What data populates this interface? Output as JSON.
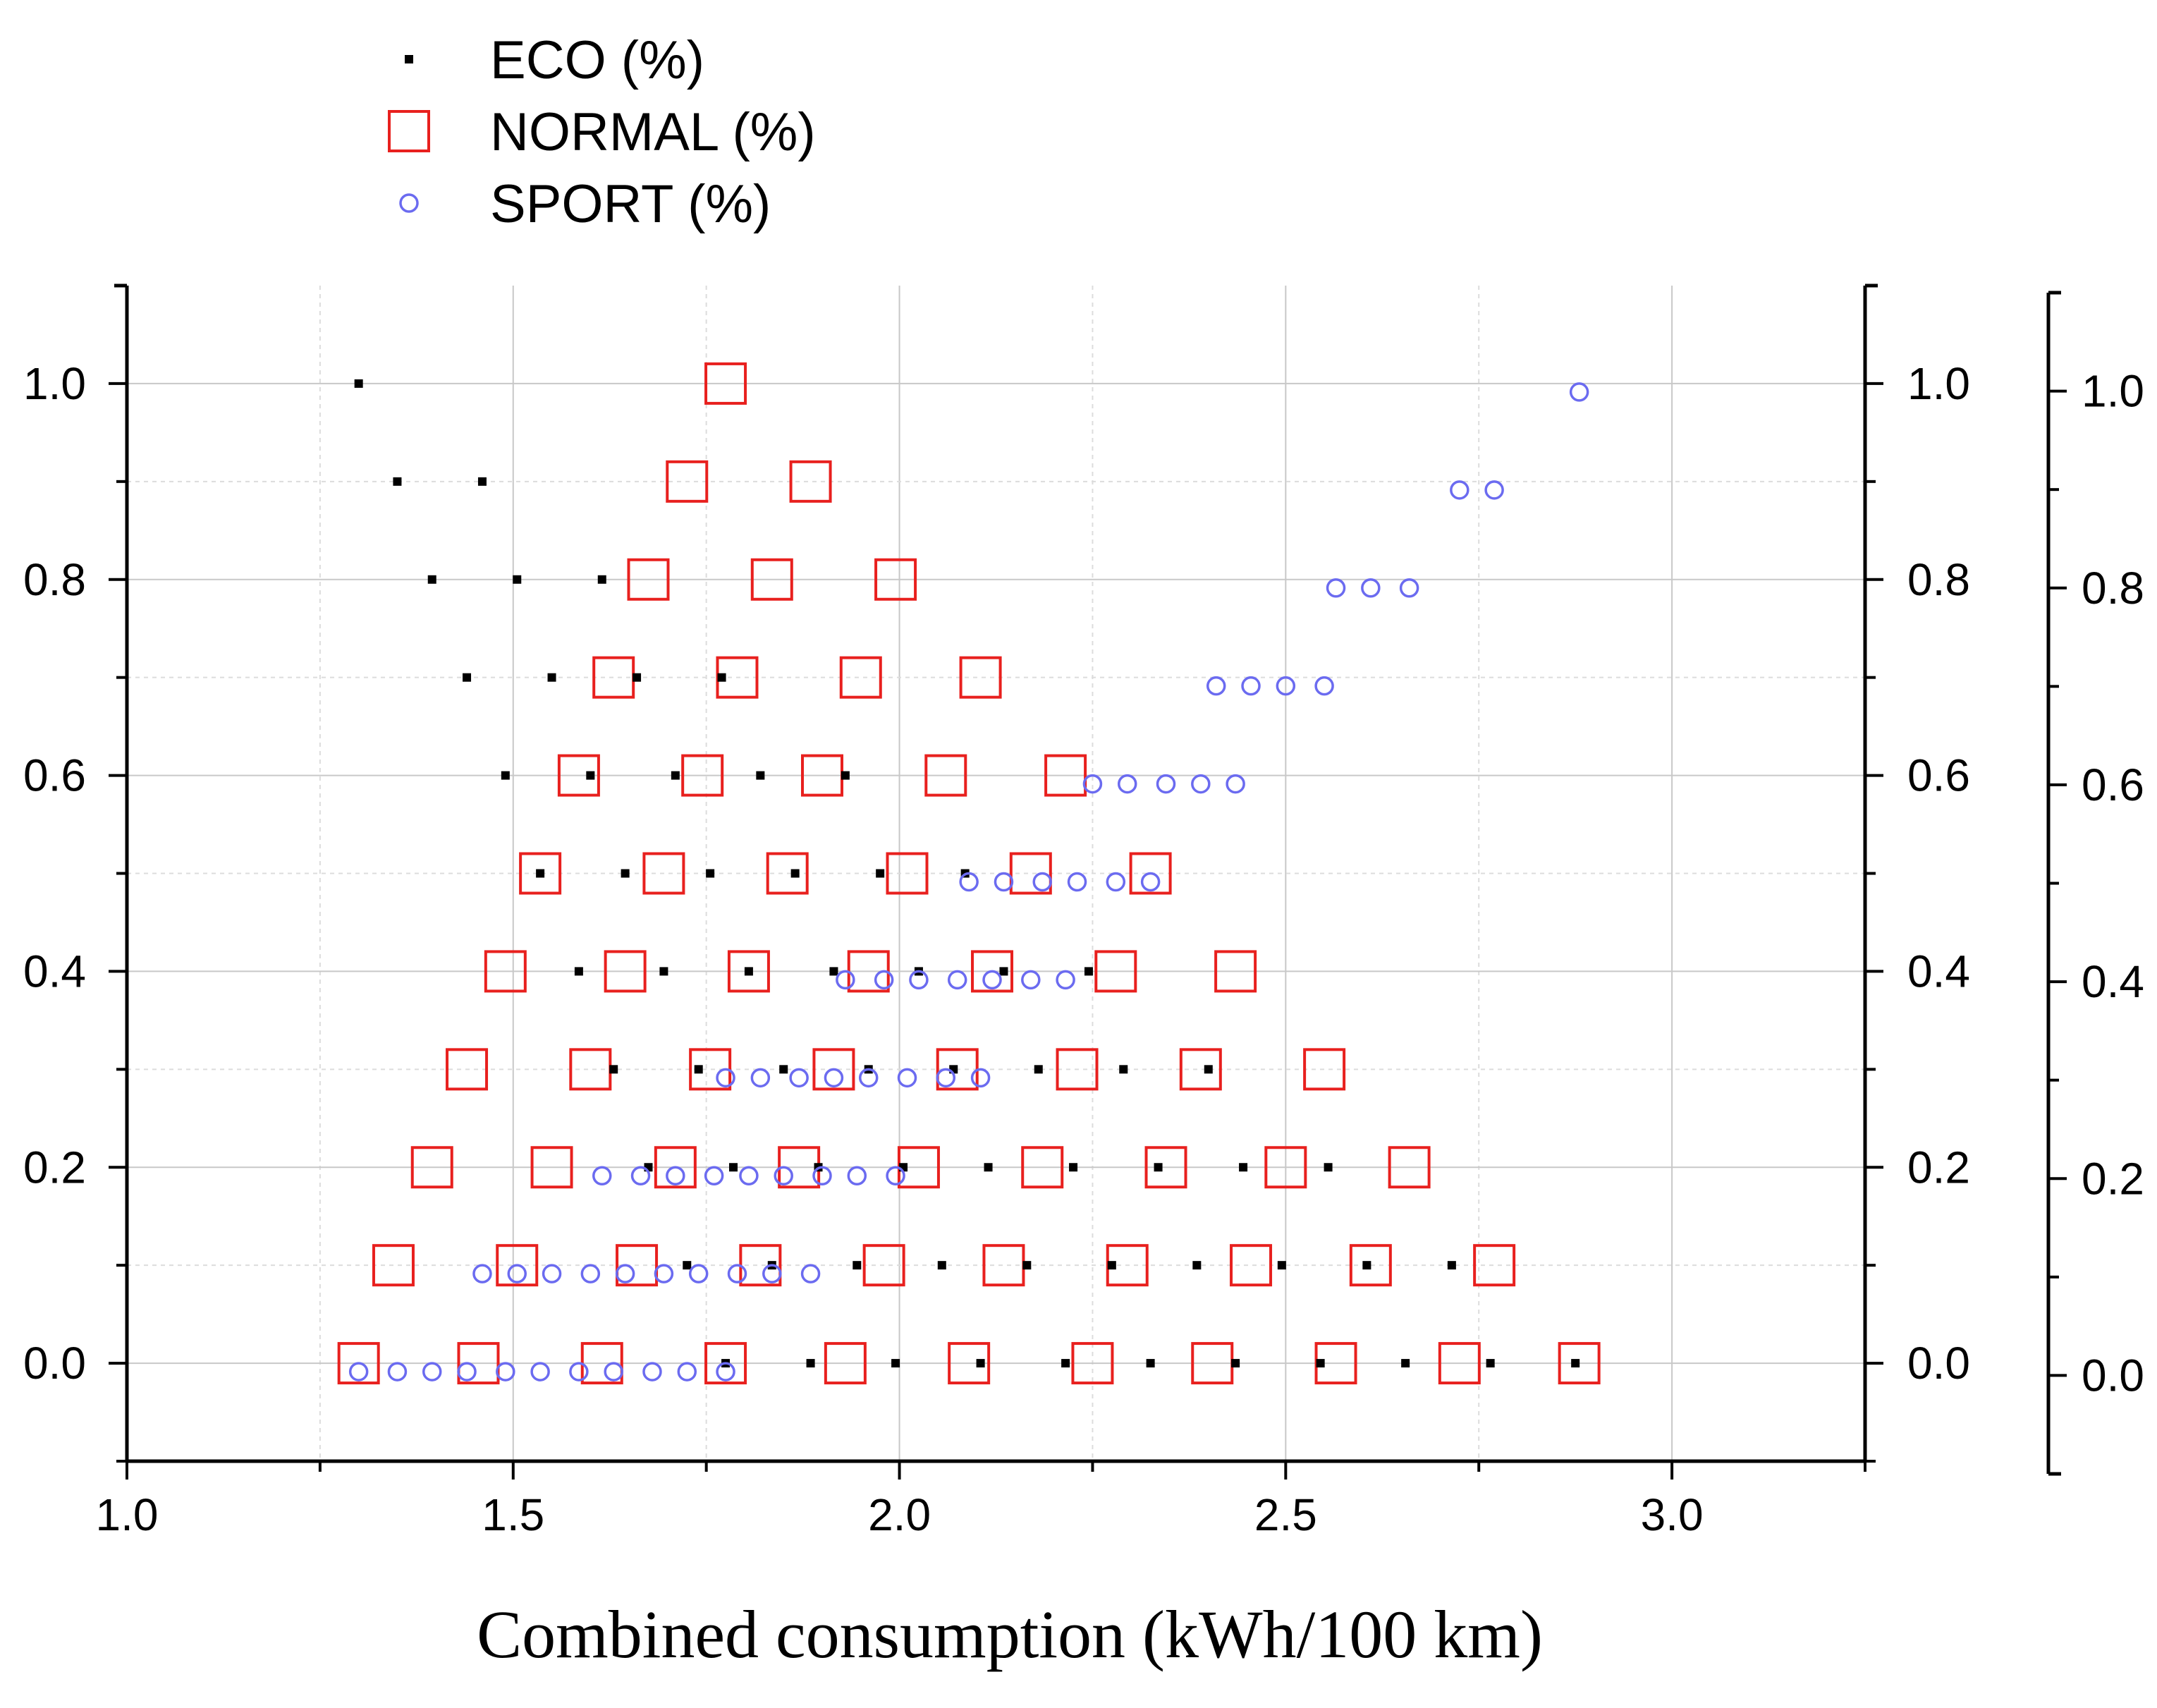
{
  "chart_data": {
    "type": "scatter",
    "title": "",
    "xlabel": "Combined consumption (kWh/100 km)",
    "ylabel": "",
    "xlim": [
      1.0,
      3.25
    ],
    "ylim": [
      -0.1,
      1.1
    ],
    "x_ticks": [
      "1.0",
      "1.5",
      "2.0",
      "2.5",
      "3.0"
    ],
    "y_ticks": [
      "0.0",
      "0.2",
      "0.4",
      "0.6",
      "0.8",
      "1.0"
    ],
    "y_ticks_right": [
      "0.0",
      "0.2",
      "0.4",
      "0.6",
      "0.8",
      "1.0"
    ],
    "y_ticks_right2": [
      "0.0",
      "0.2",
      "0.4",
      "0.6",
      "0.8",
      "1.0"
    ],
    "grid": true,
    "legend_position": "top-left, above plot",
    "series": [
      {
        "name": "ECO (%)",
        "marker": "small-square",
        "color": "#000000",
        "points": [
          [
            1.3,
            1.0
          ],
          [
            1.35,
            0.9
          ],
          [
            1.46,
            0.9
          ],
          [
            1.395,
            0.8
          ],
          [
            1.505,
            0.8
          ],
          [
            1.615,
            0.8
          ],
          [
            1.44,
            0.7
          ],
          [
            1.55,
            0.7
          ],
          [
            1.66,
            0.7
          ],
          [
            1.77,
            0.7
          ],
          [
            1.49,
            0.6
          ],
          [
            1.6,
            0.6
          ],
          [
            1.71,
            0.6
          ],
          [
            1.82,
            0.6
          ],
          [
            1.93,
            0.6
          ],
          [
            1.535,
            0.5
          ],
          [
            1.645,
            0.5
          ],
          [
            1.755,
            0.5
          ],
          [
            1.865,
            0.5
          ],
          [
            1.975,
            0.5
          ],
          [
            2.085,
            0.5
          ],
          [
            1.585,
            0.4
          ],
          [
            1.695,
            0.4
          ],
          [
            1.805,
            0.4
          ],
          [
            1.915,
            0.4
          ],
          [
            2.025,
            0.4
          ],
          [
            2.135,
            0.4
          ],
          [
            2.245,
            0.4
          ],
          [
            1.63,
            0.3
          ],
          [
            1.74,
            0.3
          ],
          [
            1.85,
            0.3
          ],
          [
            1.96,
            0.3
          ],
          [
            2.07,
            0.3
          ],
          [
            2.18,
            0.3
          ],
          [
            2.29,
            0.3
          ],
          [
            2.4,
            0.3
          ],
          [
            1.675,
            0.2
          ],
          [
            1.785,
            0.2
          ],
          [
            1.895,
            0.2
          ],
          [
            2.005,
            0.2
          ],
          [
            2.115,
            0.2
          ],
          [
            2.225,
            0.2
          ],
          [
            2.335,
            0.2
          ],
          [
            2.445,
            0.2
          ],
          [
            2.555,
            0.2
          ],
          [
            1.725,
            0.1
          ],
          [
            1.835,
            0.1
          ],
          [
            1.945,
            0.1
          ],
          [
            2.055,
            0.1
          ],
          [
            2.165,
            0.1
          ],
          [
            2.275,
            0.1
          ],
          [
            2.385,
            0.1
          ],
          [
            2.495,
            0.1
          ],
          [
            2.605,
            0.1
          ],
          [
            2.715,
            0.1
          ],
          [
            1.775,
            0.0
          ],
          [
            1.885,
            0.0
          ],
          [
            1.995,
            0.0
          ],
          [
            2.105,
            0.0
          ],
          [
            2.215,
            0.0
          ],
          [
            2.325,
            0.0
          ],
          [
            2.435,
            0.0
          ],
          [
            2.545,
            0.0
          ],
          [
            2.655,
            0.0
          ],
          [
            2.765,
            0.0
          ],
          [
            2.875,
            0.0
          ]
        ]
      },
      {
        "name": "NORMAL (%)",
        "marker": "open-square",
        "color": "#e8201e",
        "points": [
          [
            1.775,
            1.0
          ],
          [
            1.725,
            0.9
          ],
          [
            1.885,
            0.9
          ],
          [
            1.675,
            0.8
          ],
          [
            1.835,
            0.8
          ],
          [
            1.995,
            0.8
          ],
          [
            1.63,
            0.7
          ],
          [
            1.79,
            0.7
          ],
          [
            1.95,
            0.7
          ],
          [
            2.105,
            0.7
          ],
          [
            1.585,
            0.6
          ],
          [
            1.745,
            0.6
          ],
          [
            1.9,
            0.6
          ],
          [
            2.06,
            0.6
          ],
          [
            2.215,
            0.6
          ],
          [
            1.535,
            0.5
          ],
          [
            1.695,
            0.5
          ],
          [
            1.855,
            0.5
          ],
          [
            2.01,
            0.5
          ],
          [
            2.17,
            0.5
          ],
          [
            2.325,
            0.5
          ],
          [
            1.49,
            0.4
          ],
          [
            1.645,
            0.4
          ],
          [
            1.805,
            0.4
          ],
          [
            1.96,
            0.4
          ],
          [
            2.12,
            0.4
          ],
          [
            2.28,
            0.4
          ],
          [
            2.435,
            0.4
          ],
          [
            1.44,
            0.3
          ],
          [
            1.6,
            0.3
          ],
          [
            1.755,
            0.3
          ],
          [
            1.915,
            0.3
          ],
          [
            2.075,
            0.3
          ],
          [
            2.23,
            0.3
          ],
          [
            2.39,
            0.3
          ],
          [
            2.55,
            0.3
          ],
          [
            1.395,
            0.2
          ],
          [
            1.55,
            0.2
          ],
          [
            1.71,
            0.2
          ],
          [
            1.87,
            0.2
          ],
          [
            2.025,
            0.2
          ],
          [
            2.185,
            0.2
          ],
          [
            2.345,
            0.2
          ],
          [
            2.5,
            0.2
          ],
          [
            2.66,
            0.2
          ],
          [
            1.345,
            0.1
          ],
          [
            1.505,
            0.1
          ],
          [
            1.66,
            0.1
          ],
          [
            1.82,
            0.1
          ],
          [
            1.98,
            0.1
          ],
          [
            2.135,
            0.1
          ],
          [
            2.295,
            0.1
          ],
          [
            2.455,
            0.1
          ],
          [
            2.61,
            0.1
          ],
          [
            2.77,
            0.1
          ],
          [
            1.3,
            0.0
          ],
          [
            1.455,
            0.0
          ],
          [
            1.615,
            0.0
          ],
          [
            1.775,
            0.0
          ],
          [
            1.93,
            0.0
          ],
          [
            2.09,
            0.0
          ],
          [
            2.25,
            0.0
          ],
          [
            2.405,
            0.0
          ],
          [
            2.565,
            0.0
          ],
          [
            2.725,
            0.0
          ],
          [
            2.88,
            0.0
          ]
        ]
      },
      {
        "name": "SPORT (%)",
        "marker": "open-circle",
        "color": "#6b6bf0",
        "points": [
          [
            2.88,
            1.0
          ],
          [
            2.725,
            0.9
          ],
          [
            2.77,
            0.9
          ],
          [
            2.565,
            0.8
          ],
          [
            2.61,
            0.8
          ],
          [
            2.66,
            0.8
          ],
          [
            2.41,
            0.7
          ],
          [
            2.455,
            0.7
          ],
          [
            2.5,
            0.7
          ],
          [
            2.55,
            0.7
          ],
          [
            2.25,
            0.6
          ],
          [
            2.295,
            0.6
          ],
          [
            2.345,
            0.6
          ],
          [
            2.39,
            0.6
          ],
          [
            2.435,
            0.6
          ],
          [
            2.09,
            0.5
          ],
          [
            2.135,
            0.5
          ],
          [
            2.185,
            0.5
          ],
          [
            2.23,
            0.5
          ],
          [
            2.28,
            0.5
          ],
          [
            2.325,
            0.5
          ],
          [
            1.93,
            0.4
          ],
          [
            1.98,
            0.4
          ],
          [
            2.025,
            0.4
          ],
          [
            2.075,
            0.4
          ],
          [
            2.12,
            0.4
          ],
          [
            2.17,
            0.4
          ],
          [
            2.215,
            0.4
          ],
          [
            1.775,
            0.3
          ],
          [
            1.82,
            0.3
          ],
          [
            1.87,
            0.3
          ],
          [
            1.915,
            0.3
          ],
          [
            1.96,
            0.3
          ],
          [
            2.01,
            0.3
          ],
          [
            2.06,
            0.3
          ],
          [
            2.105,
            0.3
          ],
          [
            1.615,
            0.2
          ],
          [
            1.665,
            0.2
          ],
          [
            1.71,
            0.2
          ],
          [
            1.76,
            0.2
          ],
          [
            1.805,
            0.2
          ],
          [
            1.85,
            0.2
          ],
          [
            1.9,
            0.2
          ],
          [
            1.945,
            0.2
          ],
          [
            1.995,
            0.2
          ],
          [
            1.46,
            0.1
          ],
          [
            1.505,
            0.1
          ],
          [
            1.55,
            0.1
          ],
          [
            1.6,
            0.1
          ],
          [
            1.645,
            0.1
          ],
          [
            1.695,
            0.1
          ],
          [
            1.74,
            0.1
          ],
          [
            1.79,
            0.1
          ],
          [
            1.835,
            0.1
          ],
          [
            1.885,
            0.1
          ],
          [
            1.3,
            0.0
          ],
          [
            1.35,
            0.0
          ],
          [
            1.395,
            0.0
          ],
          [
            1.44,
            0.0
          ],
          [
            1.49,
            0.0
          ],
          [
            1.535,
            0.0
          ],
          [
            1.585,
            0.0
          ],
          [
            1.63,
            0.0
          ],
          [
            1.68,
            0.0
          ],
          [
            1.725,
            0.0
          ],
          [
            1.775,
            0.0
          ]
        ]
      }
    ]
  }
}
